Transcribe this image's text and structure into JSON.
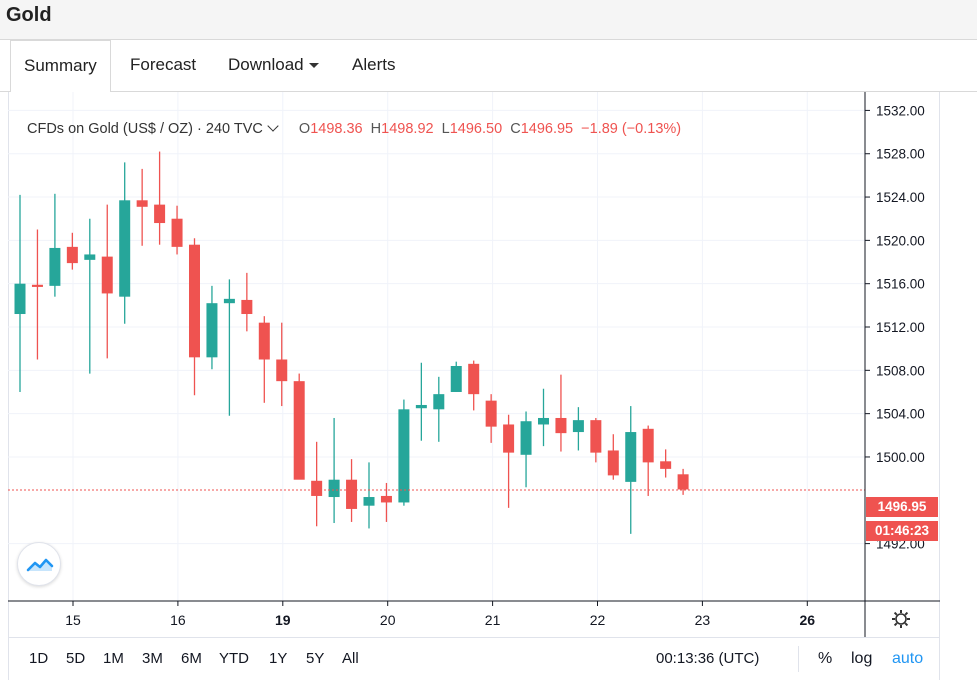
{
  "page": {
    "title": "Gold",
    "tabs": [
      {
        "label": "Summary",
        "active": true
      },
      {
        "label": "Forecast"
      },
      {
        "label": "Download"
      },
      {
        "label": "Alerts"
      }
    ]
  },
  "legend": {
    "symbol": "CFDs on Gold (US$ / OZ)",
    "sep": "·",
    "interval": "240",
    "source": "TVC",
    "o_key": "O",
    "o_val": "1498.36",
    "h_key": "H",
    "h_val": "1498.92",
    "l_key": "L",
    "l_val": "1496.50",
    "c_key": "C",
    "c_val": "1496.95",
    "change": "−1.89 (−0.13%)"
  },
  "last_price_label": "1496.95",
  "countdown_label": "01:46:23",
  "bottom": {
    "ranges": [
      "1D",
      "5D",
      "1M",
      "3M",
      "6M",
      "YTD",
      "1Y",
      "5Y",
      "All"
    ],
    "time": "00:13:36 (UTC)",
    "percent": "%",
    "log": "log",
    "auto": "auto"
  },
  "colors": {
    "up": "#26a69a",
    "down": "#ef5350",
    "grid": "#f0f3fa",
    "axis": "#131722"
  },
  "icons": {
    "settings": "gear-icon",
    "logo": "tradingview-logo-icon"
  },
  "chart_data": {
    "type": "candlestick",
    "y_ticks": [
      1532,
      1528,
      1524,
      1520,
      1516,
      1512,
      1508,
      1504,
      1500,
      1492
    ],
    "y_tick_labels": [
      "1532.00",
      "1528.00",
      "1524.00",
      "1520.00",
      "1516.00",
      "1512.00",
      "1508.00",
      "1504.00",
      "1500.00",
      "1492.00"
    ],
    "ylim": [
      1486.7,
      1533.7
    ],
    "x_tick_labels": [
      "15",
      "16",
      "19",
      "20",
      "21",
      "22",
      "23",
      "26"
    ],
    "x_tick_bold": [
      false,
      false,
      true,
      false,
      false,
      false,
      false,
      true
    ],
    "last_price": 1496.95,
    "candles": [
      {
        "o": 1513.2,
        "h": 1524.2,
        "l": 1506.0,
        "c": 1516.0
      },
      {
        "o": 1515.9,
        "h": 1521.0,
        "l": 1509.0,
        "c": 1515.7
      },
      {
        "o": 1515.8,
        "h": 1524.3,
        "l": 1514.8,
        "c": 1519.3
      },
      {
        "o": 1519.4,
        "h": 1520.7,
        "l": 1517.3,
        "c": 1517.9
      },
      {
        "o": 1518.2,
        "h": 1522.0,
        "l": 1507.7,
        "c": 1518.7
      },
      {
        "o": 1518.5,
        "h": 1523.3,
        "l": 1509.1,
        "c": 1515.1
      },
      {
        "o": 1514.8,
        "h": 1527.2,
        "l": 1512.3,
        "c": 1523.7
      },
      {
        "o": 1523.7,
        "h": 1526.6,
        "l": 1519.5,
        "c": 1523.1
      },
      {
        "o": 1523.3,
        "h": 1528.2,
        "l": 1519.6,
        "c": 1521.6
      },
      {
        "o": 1522.0,
        "h": 1523.2,
        "l": 1518.7,
        "c": 1519.4
      },
      {
        "o": 1519.6,
        "h": 1520.2,
        "l": 1505.7,
        "c": 1509.2
      },
      {
        "o": 1509.2,
        "h": 1515.8,
        "l": 1508.1,
        "c": 1514.2
      },
      {
        "o": 1514.2,
        "h": 1516.4,
        "l": 1503.8,
        "c": 1514.6
      },
      {
        "o": 1514.5,
        "h": 1517.0,
        "l": 1511.6,
        "c": 1513.2
      },
      {
        "o": 1512.4,
        "h": 1513.0,
        "l": 1505.0,
        "c": 1509.0
      },
      {
        "o": 1509.0,
        "h": 1512.4,
        "l": 1504.7,
        "c": 1507.0
      },
      {
        "o": 1507.0,
        "h": 1507.7,
        "l": 1498.0,
        "c": 1497.9
      },
      {
        "o": 1497.8,
        "h": 1501.4,
        "l": 1493.6,
        "c": 1496.4
      },
      {
        "o": 1496.3,
        "h": 1503.6,
        "l": 1493.9,
        "c": 1497.9
      },
      {
        "o": 1497.9,
        "h": 1499.8,
        "l": 1494.0,
        "c": 1495.2
      },
      {
        "o": 1495.5,
        "h": 1499.5,
        "l": 1493.4,
        "c": 1496.3
      },
      {
        "o": 1496.4,
        "h": 1497.6,
        "l": 1494.0,
        "c": 1495.8
      },
      {
        "o": 1495.8,
        "h": 1505.3,
        "l": 1495.5,
        "c": 1504.4
      },
      {
        "o": 1504.5,
        "h": 1508.7,
        "l": 1501.5,
        "c": 1504.8
      },
      {
        "o": 1504.4,
        "h": 1507.4,
        "l": 1501.4,
        "c": 1505.8
      },
      {
        "o": 1506.0,
        "h": 1508.8,
        "l": 1506.0,
        "c": 1508.4
      },
      {
        "o": 1508.6,
        "h": 1508.9,
        "l": 1504.3,
        "c": 1505.8
      },
      {
        "o": 1505.2,
        "h": 1505.8,
        "l": 1501.3,
        "c": 1502.8
      },
      {
        "o": 1503.0,
        "h": 1503.9,
        "l": 1495.3,
        "c": 1500.4
      },
      {
        "o": 1500.2,
        "h": 1504.2,
        "l": 1497.2,
        "c": 1503.3
      },
      {
        "o": 1503.0,
        "h": 1506.3,
        "l": 1501.0,
        "c": 1503.6
      },
      {
        "o": 1503.6,
        "h": 1507.6,
        "l": 1500.5,
        "c": 1502.2
      },
      {
        "o": 1502.3,
        "h": 1504.6,
        "l": 1500.6,
        "c": 1503.4
      },
      {
        "o": 1503.4,
        "h": 1503.6,
        "l": 1499.5,
        "c": 1500.4
      },
      {
        "o": 1500.6,
        "h": 1502.1,
        "l": 1497.9,
        "c": 1498.3
      },
      {
        "o": 1497.7,
        "h": 1504.7,
        "l": 1492.9,
        "c": 1502.3
      },
      {
        "o": 1502.6,
        "h": 1502.9,
        "l": 1496.4,
        "c": 1499.5
      },
      {
        "o": 1499.6,
        "h": 1500.7,
        "l": 1498.1,
        "c": 1498.9
      },
      {
        "o": 1498.4,
        "h": 1498.9,
        "l": 1496.5,
        "c": 1497.0
      }
    ]
  }
}
